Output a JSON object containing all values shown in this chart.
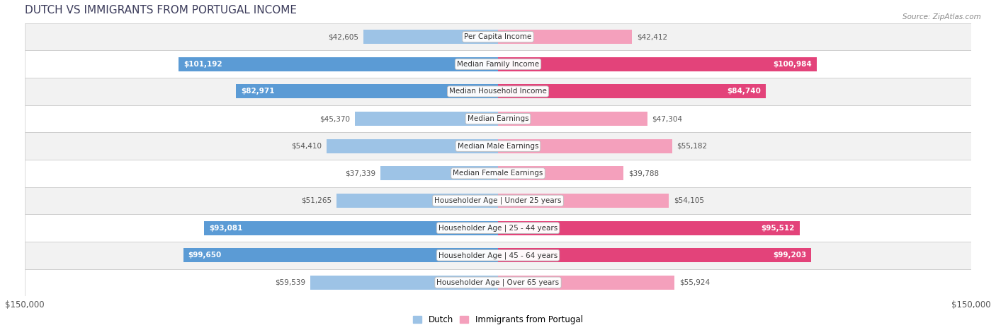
{
  "title": "DUTCH VS IMMIGRANTS FROM PORTUGAL INCOME",
  "source": "Source: ZipAtlas.com",
  "max_value": 150000,
  "categories": [
    "Per Capita Income",
    "Median Family Income",
    "Median Household Income",
    "Median Earnings",
    "Median Male Earnings",
    "Median Female Earnings",
    "Householder Age | Under 25 years",
    "Householder Age | 25 - 44 years",
    "Householder Age | 45 - 64 years",
    "Householder Age | Over 65 years"
  ],
  "dutch_values": [
    42605,
    101192,
    82971,
    45370,
    54410,
    37339,
    51265,
    93081,
    99650,
    59539
  ],
  "dutch_labels": [
    "$42,605",
    "$101,192",
    "$82,971",
    "$45,370",
    "$54,410",
    "$37,339",
    "$51,265",
    "$93,081",
    "$99,650",
    "$59,539"
  ],
  "portugal_values": [
    42412,
    100984,
    84740,
    47304,
    55182,
    39788,
    54105,
    95512,
    99203,
    55924
  ],
  "portugal_labels": [
    "$42,412",
    "$100,984",
    "$84,740",
    "$47,304",
    "$55,182",
    "$39,788",
    "$54,105",
    "$95,512",
    "$99,203",
    "$55,924"
  ],
  "dutch_color_strong": "#5b9bd5",
  "dutch_color_light": "#9dc3e6",
  "portugal_color_strong": "#e3437a",
  "portugal_color_light": "#f4a0bc",
  "inside_threshold": 70000,
  "bg_color": "#ffffff",
  "row_bg_even": "#f2f2f2",
  "row_bg_odd": "#ffffff",
  "title_fontsize": 11,
  "label_fontsize": 7.5,
  "category_fontsize": 7.5,
  "bar_height": 0.52,
  "legend_dutch": "Dutch",
  "legend_portugal": "Immigrants from Portugal",
  "x_tick_labels": [
    "$150,000",
    "$150,000"
  ],
  "title_color": "#3d3d5c",
  "source_color": "#888888"
}
